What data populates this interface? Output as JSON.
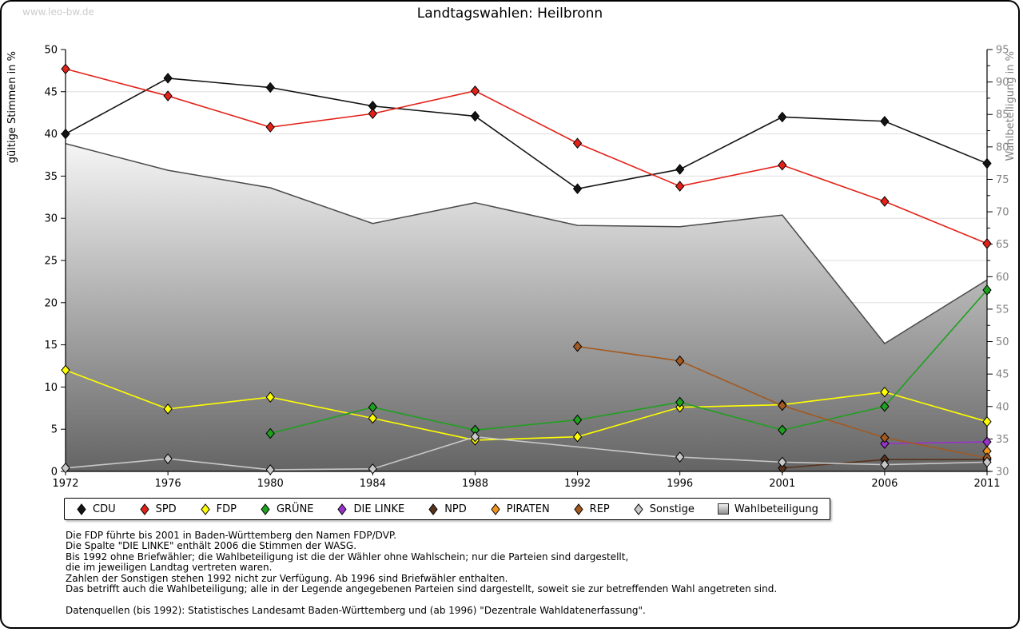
{
  "watermark": "www.leo-bw.de",
  "title": "Landtagswahlen: Heilbronn",
  "chart_data": {
    "type": "line",
    "title": "Landtagswahlen: Heilbronn",
    "x": [
      1972,
      1976,
      1980,
      1984,
      1988,
      1992,
      1996,
      2001,
      2006,
      2011
    ],
    "ylabel_left": "gültige Stimmen in %",
    "ylabel_right": "Wahlbeteiligung in %",
    "ylim_left": [
      0,
      50
    ],
    "ylim_right": [
      30,
      95
    ],
    "grid": "horizontal, every 5 (left scale)",
    "legend_position": "bottom",
    "series": [
      {
        "name": "CDU",
        "axis": "left",
        "color": "#141414",
        "values": [
          40.0,
          46.6,
          45.5,
          43.3,
          42.1,
          33.5,
          35.8,
          42.0,
          41.5,
          36.5
        ]
      },
      {
        "name": "SPD",
        "axis": "left",
        "color": "#e32219",
        "values": [
          47.7,
          44.5,
          40.8,
          42.4,
          45.1,
          38.9,
          33.8,
          36.3,
          32.0,
          27.0
        ]
      },
      {
        "name": "FDP",
        "axis": "left",
        "color": "#ffff00",
        "values": [
          12.0,
          7.4,
          8.8,
          6.3,
          3.7,
          4.1,
          7.6,
          7.9,
          9.4,
          5.9
        ]
      },
      {
        "name": "GRÜNE",
        "axis": "left",
        "color": "#1fa01f",
        "values": [
          null,
          null,
          4.5,
          7.6,
          4.9,
          6.1,
          8.2,
          4.9,
          7.7,
          21.5
        ]
      },
      {
        "name": "DIE LINKE",
        "axis": "left",
        "color": "#9932cc",
        "values": [
          null,
          null,
          null,
          null,
          null,
          null,
          null,
          null,
          3.3,
          3.5
        ]
      },
      {
        "name": "NPD",
        "axis": "left",
        "color": "#59331d",
        "values": [
          null,
          null,
          null,
          null,
          null,
          null,
          null,
          0.4,
          1.4,
          1.4
        ]
      },
      {
        "name": "PIRATEN",
        "axis": "left",
        "color": "#f0941e",
        "values": [
          null,
          null,
          null,
          null,
          null,
          null,
          null,
          null,
          null,
          2.4
        ]
      },
      {
        "name": "REP",
        "axis": "left",
        "color": "#a3591f",
        "values": [
          null,
          null,
          null,
          null,
          null,
          14.8,
          13.1,
          7.8,
          4.0,
          1.6
        ]
      },
      {
        "name": "Sonstige",
        "axis": "left",
        "color": "#c8c8c8",
        "values": [
          0.4,
          1.5,
          0.2,
          0.3,
          4.1,
          null,
          1.7,
          1.1,
          0.8,
          1.1
        ],
        "note": "1992 fehlt; Linie durchgezogen"
      },
      {
        "name": "Wahlbeteiligung",
        "axis": "right",
        "type": "area",
        "color": "#8d8d8d",
        "values": [
          80.5,
          76.4,
          73.7,
          68.2,
          71.4,
          67.9,
          67.7,
          69.5,
          49.7,
          59.5
        ]
      }
    ]
  },
  "legend": {
    "items": [
      {
        "label": "CDU",
        "color": "#141414",
        "marker": "diamond"
      },
      {
        "label": "SPD",
        "color": "#e32219",
        "marker": "diamond"
      },
      {
        "label": "FDP",
        "color": "#ffff00",
        "marker": "diamond"
      },
      {
        "label": "GRÜNE",
        "color": "#1fa01f",
        "marker": "diamond"
      },
      {
        "label": "DIE LINKE",
        "color": "#9932cc",
        "marker": "diamond"
      },
      {
        "label": "NPD",
        "color": "#59331d",
        "marker": "diamond"
      },
      {
        "label": "PIRATEN",
        "color": "#f0941e",
        "marker": "diamond"
      },
      {
        "label": "REP",
        "color": "#a3591f",
        "marker": "diamond"
      },
      {
        "label": "Sonstige",
        "color": "#c8c8c8",
        "marker": "diamond"
      },
      {
        "label": "Wahlbeteiligung",
        "color": "#8d8d8d",
        "marker": "square"
      }
    ]
  },
  "footer": {
    "lines": [
      "Die FDP führte bis 2001 in Baden-Württemberg den Namen FDP/DVP.",
      "Die Spalte \"DIE LINKE\" enthält 2006 die Stimmen der WASG.",
      "Bis 1992 ohne Briefwähler; die Wahlbeteiligung ist die der Wähler ohne Wahlschein; nur die Parteien sind dargestellt,",
      "die im jeweiligen Landtag vertreten waren.",
      "Zahlen der Sonstigen stehen 1992 nicht zur Verfügung. Ab 1996 sind Briefwähler enthalten.",
      "Das betrifft auch die Wahlbeteiligung; alle in der Legende angegebenen Parteien sind dargestellt, soweit sie zur betreffenden Wahl angetreten sind.",
      "Datenquellen (bis 1992): Statistisches Landesamt Baden-Württemberg und (ab 1996) \"Dezentrale Wahldatenerfassung\"."
    ]
  }
}
